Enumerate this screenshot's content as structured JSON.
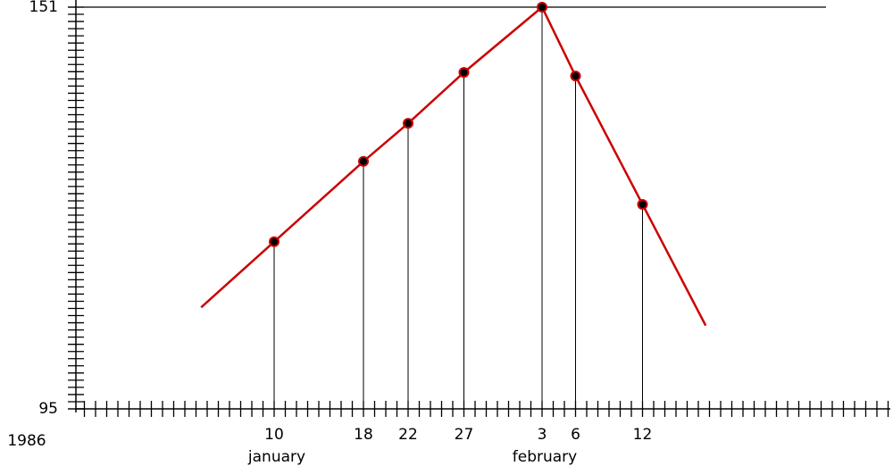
{
  "chart_data": {
    "type": "line",
    "year": "1986",
    "months": [
      "january",
      "february"
    ],
    "x": [
      "1986-01-10",
      "1986-01-18",
      "1986-01-22",
      "1986-01-27",
      "1986-02-03",
      "1986-02-06",
      "1986-02-12"
    ],
    "values": [
      118.3,
      129.5,
      134.8,
      141.9,
      151,
      141.4,
      123.5
    ],
    "color": "#cc0000",
    "ylim": [
      95,
      151
    ],
    "yticks": [
      95,
      151
    ],
    "xticks": [
      {
        "value": "1986-01-10",
        "label": "10"
      },
      {
        "value": "1986-01-18",
        "label": "18"
      },
      {
        "value": "1986-01-22",
        "label": "22"
      },
      {
        "value": "1986-01-27",
        "label": "27"
      },
      {
        "value": "1986-02-03",
        "label": "3"
      },
      {
        "value": "1986-02-06",
        "label": "6"
      },
      {
        "value": "1986-02-12",
        "label": "12"
      }
    ]
  }
}
